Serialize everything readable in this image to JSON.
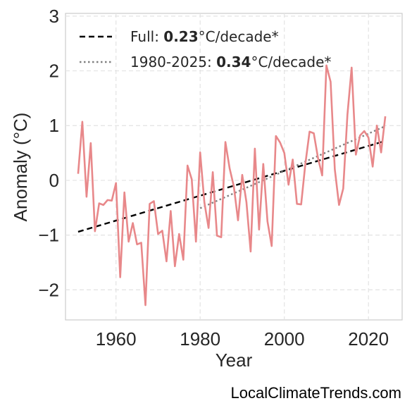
{
  "chart_data": {
    "type": "line",
    "xlabel": "Year",
    "ylabel": "Anomaly (°C)",
    "xlim": [
      1948,
      2028
    ],
    "ylim": [
      -2.55,
      3.05
    ],
    "xticks": [
      1960,
      1980,
      2000,
      2020
    ],
    "yticks": [
      3,
      2,
      1,
      0,
      -1,
      -2
    ],
    "ytick_labels": [
      "3",
      "2",
      "1",
      "0",
      "−1",
      "−2"
    ],
    "grid": true,
    "legend_position": "upper-left",
    "series": [
      {
        "color": "#e8888a",
        "x": [
          1951,
          1952,
          1953,
          1954,
          1955,
          1956,
          1957,
          1958,
          1959,
          1960,
          1961,
          1962,
          1963,
          1964,
          1965,
          1966,
          1967,
          1968,
          1969,
          1970,
          1971,
          1972,
          1973,
          1974,
          1975,
          1976,
          1977,
          1978,
          1979,
          1980,
          1981,
          1982,
          1983,
          1984,
          1985,
          1986,
          1987,
          1988,
          1989,
          1990,
          1991,
          1992,
          1993,
          1994,
          1995,
          1996,
          1997,
          1998,
          1999,
          2000,
          2001,
          2002,
          2003,
          2004,
          2005,
          2006,
          2007,
          2008,
          2009,
          2010,
          2011,
          2012,
          2013,
          2014,
          2015,
          2016,
          2017,
          2018,
          2019,
          2020,
          2021,
          2022,
          2023,
          2024
        ],
        "y": [
          0.12,
          1.07,
          -0.3,
          0.68,
          -0.93,
          -0.42,
          -0.45,
          -0.36,
          -0.37,
          -0.05,
          -1.77,
          -0.22,
          -1.12,
          -0.78,
          -1.17,
          -1.14,
          -2.28,
          -0.43,
          -0.38,
          -0.98,
          -0.92,
          -1.48,
          -0.56,
          -1.57,
          -0.98,
          -1.45,
          0.27,
          0.02,
          -1.12,
          0.51,
          -0.4,
          -0.87,
          0.15,
          -1.01,
          -1.04,
          0.7,
          0.22,
          -0.11,
          -0.73,
          0.1,
          -0.4,
          -1.3,
          0.58,
          -0.9,
          0.3,
          -0.75,
          -1.2,
          0.81,
          0.69,
          0.5,
          -0.08,
          0.38,
          -0.43,
          -0.44,
          0.3,
          0.89,
          0.86,
          0.41,
          0.09,
          2.1,
          1.8,
          0.2,
          -0.45,
          -0.15,
          1.2,
          2.06,
          0.47,
          0.82,
          0.9,
          0.78,
          0.25,
          1.0,
          0.51,
          1.17
        ]
      }
    ],
    "trends": [
      {
        "label_prefix": "Full: ",
        "value": "0.23",
        "label_suffix": "°C/decade*",
        "style": "dashed",
        "color": "#000000",
        "x": [
          1951,
          2024
        ],
        "y": [
          -0.94,
          0.72
        ]
      },
      {
        "label_prefix": "1980-2025: ",
        "value": "0.34",
        "label_suffix": "°C/decade*",
        "style": "dotted",
        "color": "#808080",
        "x": [
          1980,
          2024
        ],
        "y": [
          -0.51,
          0.99
        ]
      }
    ]
  },
  "watermark": "LocalClimateTrends.com"
}
